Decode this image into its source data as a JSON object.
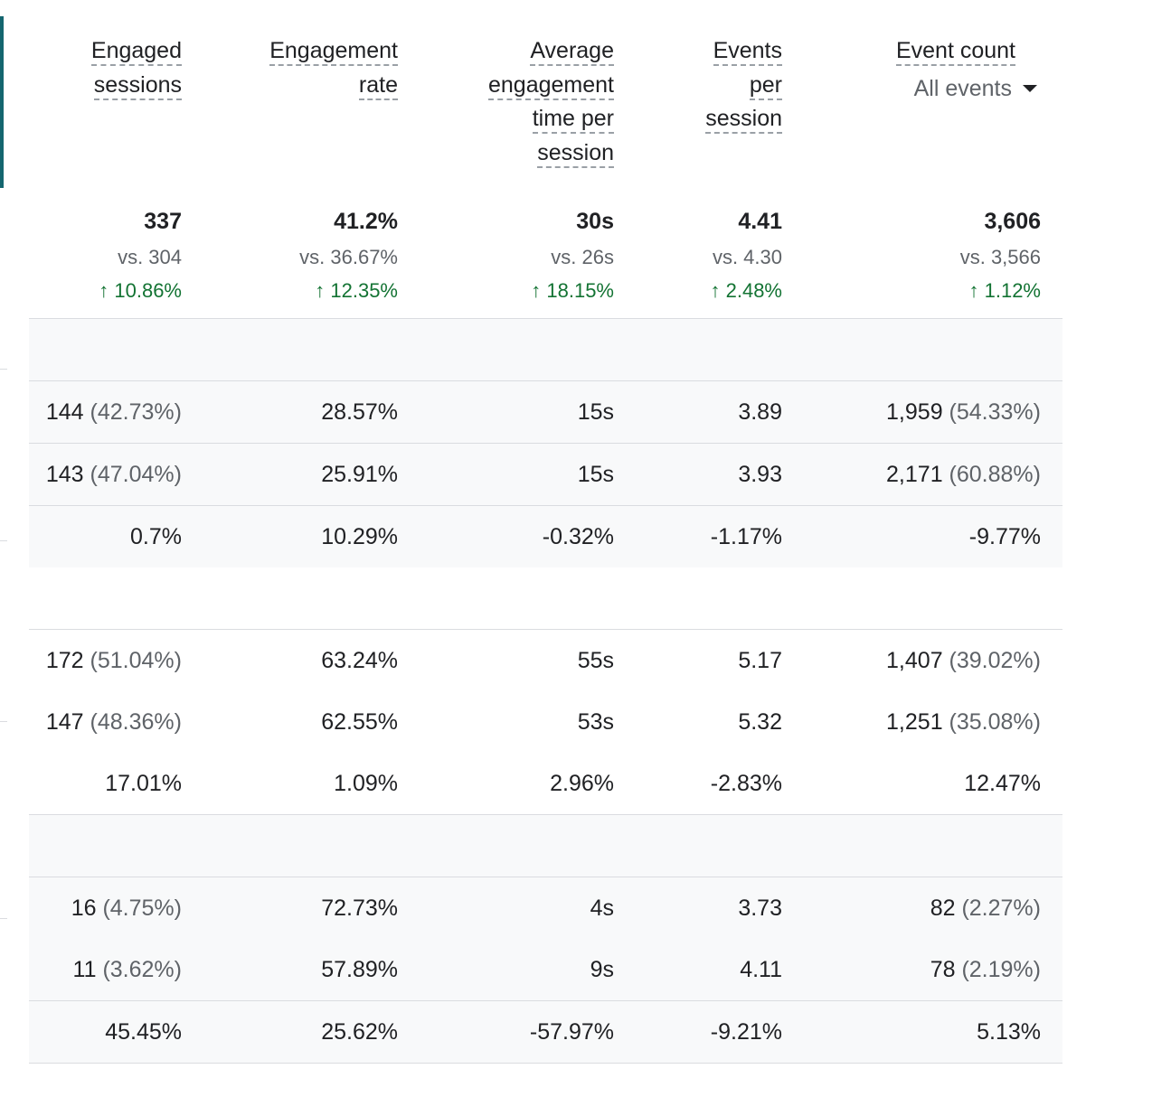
{
  "columns": [
    {
      "label_lines": [
        "Engaged",
        "sessions"
      ]
    },
    {
      "label_lines": [
        "Engagement",
        "rate"
      ]
    },
    {
      "label_lines": [
        "Average",
        "engagement",
        "time per",
        "session"
      ]
    },
    {
      "label_lines": [
        "Events",
        "per",
        "session"
      ]
    },
    {
      "label_lines": [
        "Event count"
      ],
      "dropdown": "All events"
    }
  ],
  "totals": [
    {
      "value": "337",
      "compare": "vs. 304",
      "change": "↑ 10.86%"
    },
    {
      "value": "41.2%",
      "compare": "vs. 36.67%",
      "change": "↑ 12.35%"
    },
    {
      "value": "30s",
      "compare": "vs. 26s",
      "change": "↑ 18.15%"
    },
    {
      "value": "4.41",
      "compare": "vs. 4.30",
      "change": "↑ 2.48%"
    },
    {
      "value": "3,606",
      "compare": "vs. 3,566",
      "change": "↑ 1.12%"
    }
  ],
  "groups": [
    {
      "rows": [
        [
          {
            "v": "144",
            "p": "(42.73%)"
          },
          {
            "v": "28.57%"
          },
          {
            "v": "15s"
          },
          {
            "v": "3.89"
          },
          {
            "v": "1,959",
            "p": "(54.33%)"
          }
        ],
        [
          {
            "v": "143",
            "p": "(47.04%)"
          },
          {
            "v": "25.91%"
          },
          {
            "v": "15s"
          },
          {
            "v": "3.93"
          },
          {
            "v": "2,171",
            "p": "(60.88%)"
          }
        ],
        [
          {
            "v": "0.7%"
          },
          {
            "v": "10.29%"
          },
          {
            "v": "-0.32%"
          },
          {
            "v": "-1.17%"
          },
          {
            "v": "-9.77%"
          }
        ]
      ]
    },
    {
      "rows": [
        [
          {
            "v": "172",
            "p": "(51.04%)"
          },
          {
            "v": "63.24%"
          },
          {
            "v": "55s"
          },
          {
            "v": "5.17"
          },
          {
            "v": "1,407",
            "p": "(39.02%)"
          }
        ],
        [
          {
            "v": "147",
            "p": "(48.36%)"
          },
          {
            "v": "62.55%"
          },
          {
            "v": "53s"
          },
          {
            "v": "5.32"
          },
          {
            "v": "1,251",
            "p": "(35.08%)"
          }
        ],
        [
          {
            "v": "17.01%"
          },
          {
            "v": "1.09%"
          },
          {
            "v": "2.96%"
          },
          {
            "v": "-2.83%"
          },
          {
            "v": "12.47%"
          }
        ]
      ]
    },
    {
      "rows": [
        [
          {
            "v": "16",
            "p": "(4.75%)"
          },
          {
            "v": "72.73%"
          },
          {
            "v": "4s"
          },
          {
            "v": "3.73"
          },
          {
            "v": "82",
            "p": "(2.27%)"
          }
        ],
        [
          {
            "v": "11",
            "p": "(3.62%)"
          },
          {
            "v": "57.89%"
          },
          {
            "v": "9s"
          },
          {
            "v": "4.11"
          },
          {
            "v": "78",
            "p": "(2.19%)"
          }
        ],
        [
          {
            "v": "45.45%"
          },
          {
            "v": "25.62%"
          },
          {
            "v": "-57.97%"
          },
          {
            "v": "-9.21%"
          },
          {
            "v": "5.13%"
          }
        ]
      ]
    }
  ],
  "colors": {
    "positive": "#137333",
    "accent": "#14666f"
  }
}
